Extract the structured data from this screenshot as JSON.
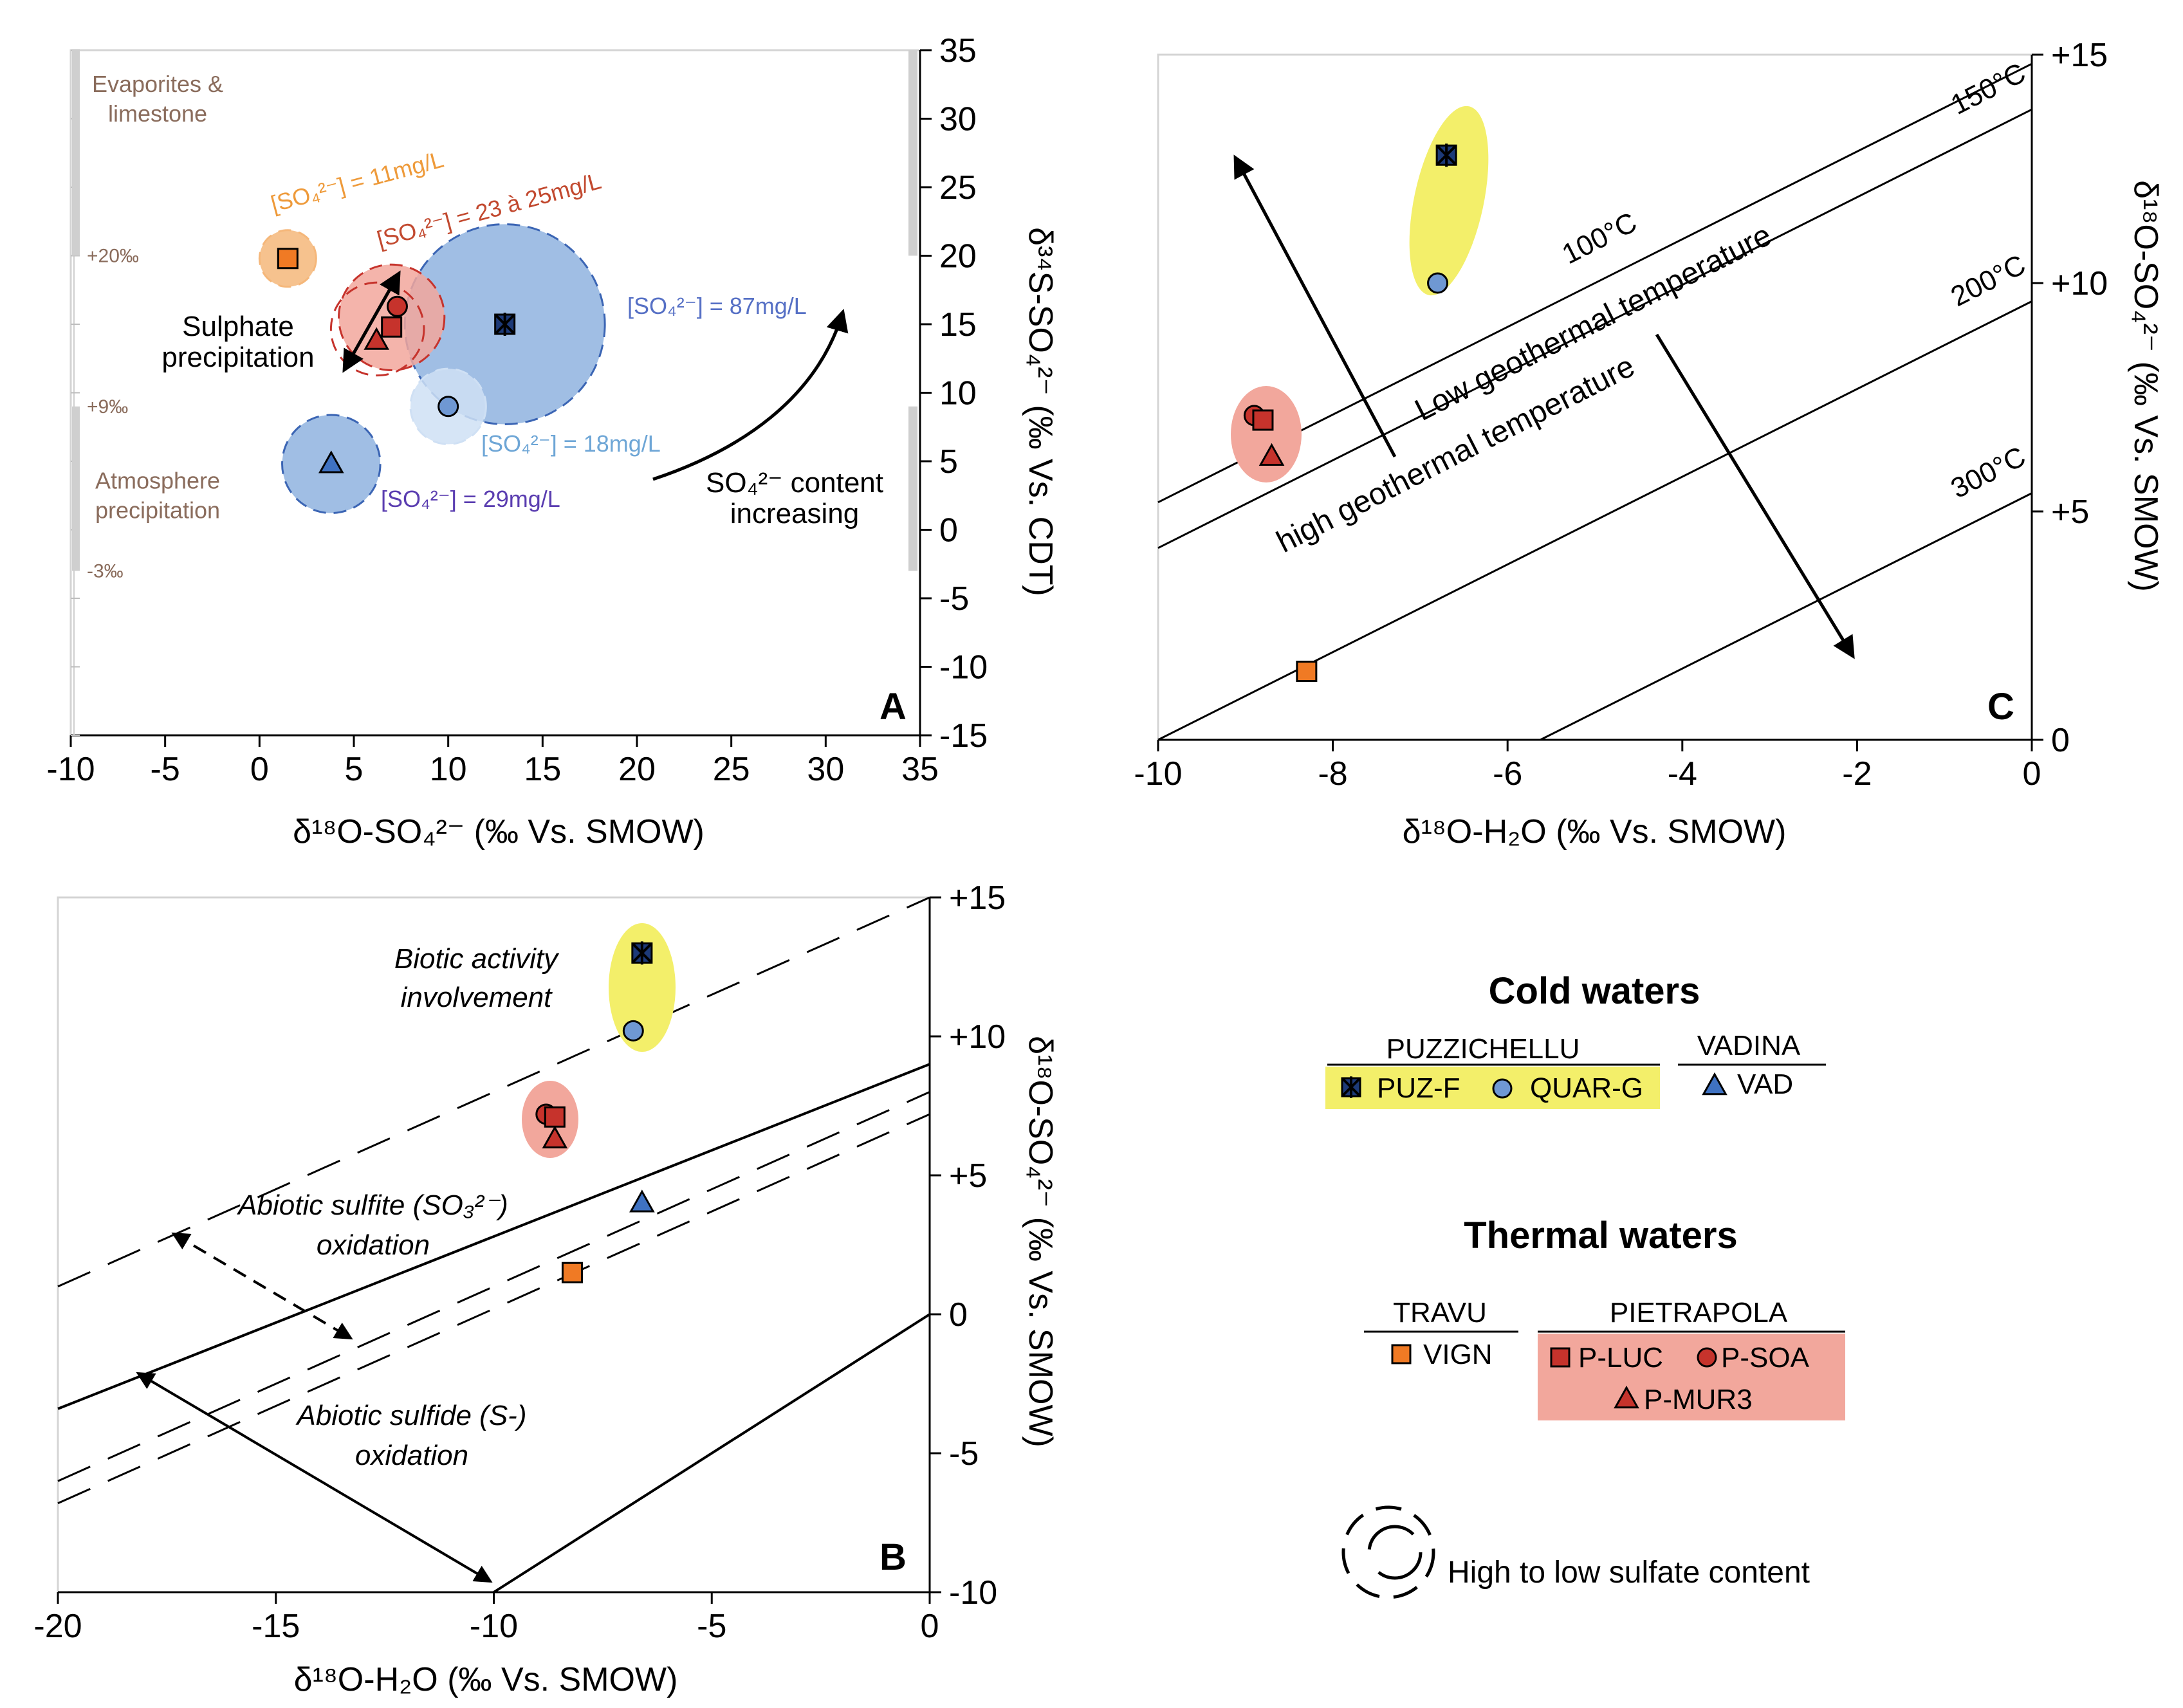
{
  "colors": {
    "axis": "#000000",
    "frame": "#d4d4d4",
    "range_bar": "#cfcfcf",
    "range_text": "#8a6c5c",
    "yellow_fill": "#f3ef6a",
    "pink_fill": "#f2a79c",
    "blue_bubble": "#8fb3df",
    "blue_edge": "#3b65b4",
    "light_bubble": "#cfe0f4",
    "orange_bubble": "#f5b77a",
    "orange": "#f07a24",
    "red": "#c6332c",
    "dark_blue": "#1d3a78",
    "mid_blue": "#3f72c2",
    "light_blue_marker": "#6f98d3",
    "label_orange": "#ee9a3a",
    "label_red": "#c2492f",
    "label_blue": "#5670c5",
    "label_light": "#6ea6d6",
    "label_purple": "#5a3db0"
  },
  "chart_data": [
    {
      "id": "A",
      "type": "scatter",
      "panel_label": "A",
      "xlabel": "δ¹⁸O-SO₄²⁻ (‰ Vs. SMOW)",
      "ylabel": "δ³⁴S-SO₄²⁻ (‰ Vs. CDT)",
      "xlim": [
        -10,
        35
      ],
      "ylim": [
        -15,
        35
      ],
      "x_ticks": [
        "-10",
        "-5",
        "0",
        "5",
        "10",
        "15",
        "20",
        "25",
        "30",
        "35"
      ],
      "y_ticks": [
        "35",
        "30",
        "25",
        "20",
        "15",
        "10",
        "5",
        "0",
        "-5",
        "-10",
        "-15"
      ],
      "ranges": [
        {
          "name": "Evaporites & limestone",
          "lines": [
            "Evaporites &",
            "limestone"
          ],
          "from": 20,
          "to": 35
        },
        {
          "name": "Atmosphere precipitation",
          "lines": [
            "Atmosphere",
            "precipitation"
          ],
          "from": -3,
          "to": 9
        }
      ],
      "range_ticks": [
        "+20‰",
        "+9‰",
        "-3‰"
      ],
      "range_tick_values": [
        20,
        9,
        -3
      ],
      "bubbles": [
        {
          "sample": "VIGN",
          "concentration": "[SO₄²⁻] = 11mg/L",
          "x": 1.5,
          "y": 19.8,
          "r": 1.5
        },
        {
          "sample": "P-LUC / P-SOA / P-MUR3",
          "concentration": "[SO₄²⁻] = 23 à 25mg/L",
          "x": 7.0,
          "y": 15.5,
          "r": 2.8
        },
        {
          "sample": "PUZ-F",
          "concentration": "[SO₄²⁻] = 87mg/L",
          "x": 13.0,
          "y": 15.0,
          "r": 5.3
        },
        {
          "sample": "QUAR-G",
          "concentration": "[SO₄²⁻] = 18mg/L",
          "x": 10.0,
          "y": 9.0,
          "r": 2.0
        },
        {
          "sample": "VAD",
          "concentration": "[SO₄²⁻] = 29mg/L",
          "x": 3.8,
          "y": 4.8,
          "r": 2.6
        }
      ],
      "points": [
        {
          "sample": "VIGN",
          "marker": "square",
          "x": 1.5,
          "y": 19.8
        },
        {
          "sample": "P-SOA",
          "marker": "circle",
          "x": 7.3,
          "y": 16.3
        },
        {
          "sample": "P-LUC",
          "marker": "square",
          "x": 7.0,
          "y": 14.8
        },
        {
          "sample": "P-MUR3",
          "marker": "triangle",
          "x": 6.2,
          "y": 13.8
        },
        {
          "sample": "PUZ-F",
          "marker": "star",
          "x": 13.0,
          "y": 15.0
        },
        {
          "sample": "QUAR-G",
          "marker": "circle",
          "x": 10.0,
          "y": 9.0
        },
        {
          "sample": "VAD",
          "marker": "triangle",
          "x": 3.8,
          "y": 4.8
        }
      ],
      "annotations": {
        "sulphate_precipitation": [
          "Sulphate",
          "precipitation"
        ],
        "so4_increasing": [
          "SO₄²⁻ content",
          "increasing"
        ]
      }
    },
    {
      "id": "C",
      "type": "scatter",
      "panel_label": "C",
      "xlabel": "δ¹⁸O-H₂O (‰ Vs. SMOW)",
      "ylabel": "δ¹⁸O-SO₄²⁻ (‰ Vs. SMOW)",
      "xlim": [
        -10,
        0
      ],
      "ylim": [
        0,
        15
      ],
      "x_ticks": [
        "-10",
        "-8",
        "-6",
        "-4",
        "-2",
        "0"
      ],
      "y_ticks": [
        "+15",
        "+10",
        "+5",
        "0"
      ],
      "y_tick_values": [
        15,
        10,
        5,
        0
      ],
      "isotherms": [
        {
          "label": "100°C",
          "b": 14.8
        },
        {
          "label": "150°C",
          "b": 13.8
        },
        {
          "label": "200°C",
          "b": 9.6
        },
        {
          "label": "300°C",
          "b": 5.4
        }
      ],
      "isotherm_slope": 0.96,
      "zone_labels": [
        "Low geothermal temperature",
        "high geothermal temperature"
      ],
      "points": [
        {
          "sample": "PUZ-F",
          "marker": "star",
          "x": -6.7,
          "y": 12.8
        },
        {
          "sample": "QUAR-G",
          "marker": "circle",
          "x": -6.8,
          "y": 10.0
        },
        {
          "sample": "P-SOA",
          "marker": "circle",
          "x": -8.9,
          "y": 7.1
        },
        {
          "sample": "P-LUC",
          "marker": "square",
          "x": -8.8,
          "y": 7.0
        },
        {
          "sample": "P-MUR3",
          "marker": "triangle",
          "x": -8.7,
          "y": 6.2
        },
        {
          "sample": "VIGN",
          "marker": "square",
          "x": -8.3,
          "y": 1.5
        }
      ]
    },
    {
      "id": "B",
      "type": "scatter",
      "panel_label": "B",
      "xlabel": "δ¹⁸O-H₂O (‰ Vs. SMOW)",
      "ylabel": "δ¹⁸O-SO₄²⁻ (‰ Vs. SMOW)",
      "xlim": [
        -20,
        0
      ],
      "ylim": [
        -10,
        15
      ],
      "x_ticks": [
        "-20",
        "-15",
        "-10",
        "-5",
        "0"
      ],
      "y_ticks": [
        "+15",
        "+10",
        "+5",
        "0",
        "-5",
        "-10"
      ],
      "y_tick_values": [
        15,
        10,
        5,
        0,
        -5,
        -10
      ],
      "lines": [
        {
          "name": "sulfite upper bound",
          "style": "dashed",
          "slope": 0.7,
          "intercept": 15
        },
        {
          "name": "sulfide upper bound",
          "style": "solid",
          "slope": 0.62,
          "intercept": 9
        },
        {
          "name": "sulfite lower bound",
          "style": "dashed",
          "slope": 0.7,
          "intercept": 8
        },
        {
          "name": "sulfide lower bound",
          "style": "solid",
          "slope": 1.0,
          "intercept": 0
        }
      ],
      "points": [
        {
          "sample": "PUZ-F",
          "marker": "star",
          "x": -6.6,
          "y": 13.0
        },
        {
          "sample": "QUAR-G",
          "marker": "circle",
          "x": -6.8,
          "y": 10.2
        },
        {
          "sample": "P-SOA",
          "marker": "circle",
          "x": -8.8,
          "y": 7.2
        },
        {
          "sample": "P-LUC",
          "marker": "square",
          "x": -8.6,
          "y": 7.1
        },
        {
          "sample": "P-MUR3",
          "marker": "triangle",
          "x": -8.6,
          "y": 6.3
        },
        {
          "sample": "VAD",
          "marker": "triangle",
          "x": -6.6,
          "y": 4.0
        },
        {
          "sample": "VIGN",
          "marker": "square",
          "x": -8.2,
          "y": 1.5
        }
      ],
      "annotations": {
        "biotic": [
          "Biotic activity",
          "involvement"
        ],
        "sulfite": [
          "Abiotic sulfite (SO₃²⁻)",
          "oxidation"
        ],
        "sulfide": [
          "Abiotic sulfide (S-)",
          "oxidation"
        ]
      }
    }
  ],
  "legend": {
    "cold_title": "Cold waters",
    "thermal_title": "Thermal waters",
    "puzzichellu": "PUZZICHELLU",
    "vadina": "VADINA",
    "travu": "TRAVU",
    "pietrapola": "PIETRAPOLA",
    "puz_f": "PUZ-F",
    "quar_g": "QUAR-G",
    "vad": "VAD",
    "vign": "VIGN",
    "p_luc": "P-LUC",
    "p_soa": "P-SOA",
    "p_mur3": "P-MUR3",
    "sulfate_note": "High to low sulfate content"
  }
}
